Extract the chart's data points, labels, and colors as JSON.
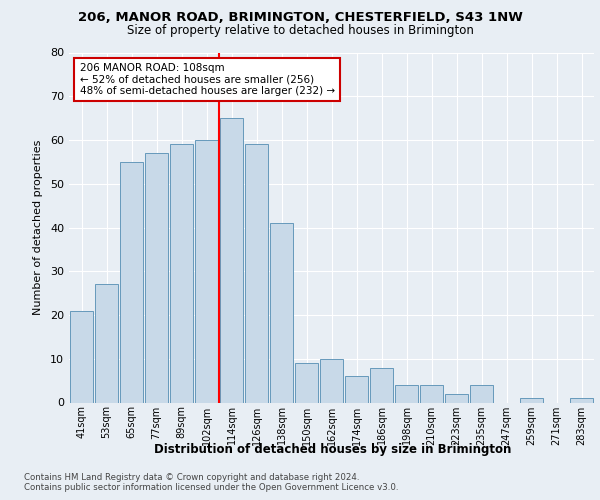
{
  "title1": "206, MANOR ROAD, BRIMINGTON, CHESTERFIELD, S43 1NW",
  "title2": "Size of property relative to detached houses in Brimington",
  "xlabel": "Distribution of detached houses by size in Brimington",
  "ylabel": "Number of detached properties",
  "categories": [
    "41sqm",
    "53sqm",
    "65sqm",
    "77sqm",
    "89sqm",
    "102sqm",
    "114sqm",
    "126sqm",
    "138sqm",
    "150sqm",
    "162sqm",
    "174sqm",
    "186sqm",
    "198sqm",
    "210sqm",
    "223sqm",
    "235sqm",
    "247sqm",
    "259sqm",
    "271sqm",
    "283sqm"
  ],
  "values": [
    21,
    27,
    55,
    57,
    59,
    60,
    65,
    59,
    41,
    9,
    10,
    6,
    8,
    4,
    4,
    2,
    4,
    0,
    1,
    0,
    1
  ],
  "bar_color": "#c8d9e8",
  "bar_edge_color": "#6699bb",
  "highlight_line_index": 6,
  "annotation_line1": "206 MANOR ROAD: 108sqm",
  "annotation_line2": "← 52% of detached houses are smaller (256)",
  "annotation_line3": "48% of semi-detached houses are larger (232) →",
  "annotation_box_color": "#ffffff",
  "annotation_box_edge_color": "#cc0000",
  "footer1": "Contains HM Land Registry data © Crown copyright and database right 2024.",
  "footer2": "Contains public sector information licensed under the Open Government Licence v3.0.",
  "ylim": [
    0,
    80
  ],
  "background_color": "#e8eef4",
  "plot_background_color": "#e8eef4"
}
